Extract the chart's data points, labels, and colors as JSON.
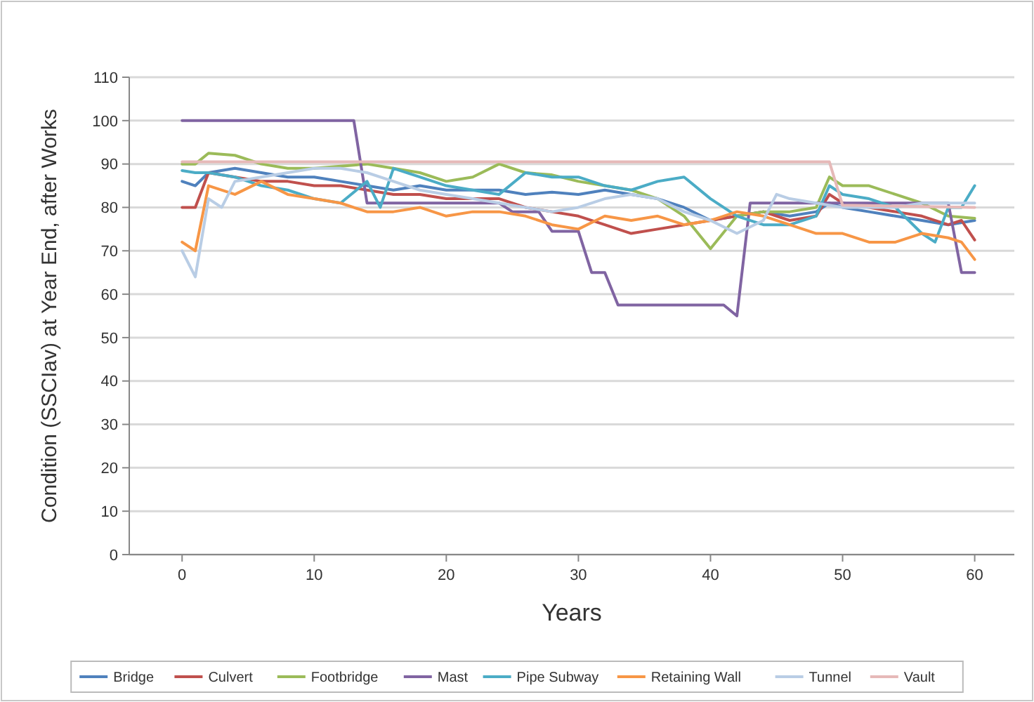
{
  "chart_data": {
    "type": "line",
    "xlabel": "Years",
    "ylabel": "Condition (SSCIav) at Year End, after Works",
    "xlim": [
      -4,
      63
    ],
    "xticks": [
      0,
      10,
      20,
      30,
      40,
      50,
      60
    ],
    "ylim": [
      0,
      110
    ],
    "yticks": [
      0,
      10,
      20,
      30,
      40,
      50,
      60,
      70,
      80,
      90,
      100,
      110
    ],
    "grid": "y",
    "legend": "bottom",
    "marker": "none",
    "line_style": "solid",
    "series": [
      {
        "name": "Bridge",
        "color": "#4f81bd",
        "x": [
          0,
          1,
          2,
          4,
          6,
          8,
          10,
          12,
          14,
          16,
          18,
          20,
          22,
          24,
          26,
          28,
          30,
          32,
          34,
          36,
          38,
          40,
          42,
          44,
          46,
          48,
          49,
          50,
          52,
          54,
          56,
          58,
          60
        ],
        "values": [
          86,
          85,
          88,
          89,
          88,
          87,
          87,
          86,
          85,
          84,
          85,
          84,
          84,
          84,
          83,
          83.5,
          83,
          84,
          83,
          82,
          80,
          77,
          78,
          79,
          78,
          79,
          81,
          80,
          79,
          78,
          77,
          76,
          77
        ]
      },
      {
        "name": "Culvert",
        "color": "#c0504d",
        "x": [
          0,
          1,
          2,
          4,
          6,
          8,
          10,
          12,
          14,
          16,
          18,
          20,
          22,
          24,
          26,
          28,
          30,
          32,
          34,
          36,
          38,
          40,
          42,
          44,
          46,
          48,
          49,
          50,
          52,
          54,
          56,
          58,
          59,
          60
        ],
        "values": [
          80,
          80,
          88,
          87,
          86,
          86,
          85,
          85,
          84,
          83,
          83,
          82,
          82,
          82,
          80,
          79,
          78,
          76,
          74,
          75,
          76,
          77,
          78,
          79,
          77,
          78,
          83,
          81,
          80,
          79,
          78,
          76,
          77,
          72.5
        ]
      },
      {
        "name": "Footbridge",
        "color": "#9bbb59",
        "x": [
          0,
          1,
          2,
          4,
          6,
          8,
          10,
          12,
          14,
          16,
          18,
          20,
          22,
          24,
          26,
          28,
          30,
          32,
          34,
          36,
          38,
          40,
          42,
          44,
          46,
          48,
          49,
          50,
          52,
          54,
          56,
          58,
          60
        ],
        "values": [
          90,
          90,
          92.5,
          92,
          90,
          89,
          89,
          89.5,
          90,
          89,
          88,
          86,
          87,
          90,
          88,
          87.5,
          86,
          85,
          84,
          82,
          78,
          70.5,
          78,
          79,
          79,
          80,
          87,
          85,
          85,
          83,
          81,
          78,
          77.5
        ]
      },
      {
        "name": "Mast",
        "color": "#8064a2",
        "x": [
          0,
          13,
          14,
          24,
          25,
          27,
          28,
          30,
          31,
          32,
          33,
          41,
          42,
          43,
          58,
          59,
          60
        ],
        "values": [
          100,
          100,
          81,
          81,
          79,
          79,
          74.5,
          74.5,
          65,
          65,
          57.5,
          57.5,
          55,
          81,
          81,
          65,
          65
        ]
      },
      {
        "name": "Pipe Subway",
        "color": "#4bacc6",
        "x": [
          0,
          1,
          2,
          4,
          6,
          8,
          10,
          12,
          14,
          15,
          16,
          18,
          20,
          22,
          24,
          26,
          28,
          30,
          32,
          34,
          36,
          38,
          40,
          42,
          44,
          46,
          48,
          49,
          50,
          52,
          54,
          56,
          57,
          58,
          59,
          60
        ],
        "values": [
          88.5,
          88,
          88,
          87,
          85,
          84,
          82,
          81,
          86,
          80,
          89,
          87,
          85,
          84,
          83,
          88,
          87,
          87,
          85,
          84,
          86,
          87,
          82,
          78,
          76,
          76,
          78,
          85,
          83,
          82,
          80,
          74,
          72,
          80,
          80,
          85
        ]
      },
      {
        "name": "Retaining Wall",
        "color": "#f79646",
        "x": [
          0,
          1,
          2,
          4,
          6,
          8,
          10,
          12,
          14,
          16,
          18,
          20,
          22,
          24,
          26,
          28,
          30,
          32,
          34,
          36,
          38,
          40,
          42,
          44,
          46,
          48,
          50,
          52,
          54,
          56,
          58,
          59,
          60
        ],
        "values": [
          72,
          70,
          85,
          83,
          86,
          83,
          82,
          81,
          79,
          79,
          80,
          78,
          79,
          79,
          78,
          76,
          75,
          78,
          77,
          78,
          76,
          77,
          79,
          78,
          76,
          74,
          74,
          72,
          72,
          74,
          73,
          72,
          68
        ]
      },
      {
        "name": "Tunnel",
        "color": "#b9cde5",
        "x": [
          0,
          1,
          2,
          3,
          4,
          6,
          8,
          10,
          12,
          14,
          16,
          18,
          20,
          22,
          24,
          26,
          28,
          30,
          32,
          34,
          36,
          38,
          40,
          42,
          44,
          45,
          46,
          48,
          50,
          52,
          54,
          56,
          58,
          60
        ],
        "values": [
          70,
          64,
          82,
          80,
          86,
          87,
          88,
          89,
          89,
          88,
          86,
          84,
          83,
          82,
          81,
          80,
          79,
          80,
          82,
          83,
          82,
          79,
          77,
          74,
          77,
          83,
          82,
          81,
          80,
          80,
          80,
          81,
          81,
          81
        ]
      },
      {
        "name": "Vault",
        "color": "#e6b9b8",
        "x": [
          0,
          49,
          50,
          60
        ],
        "values": [
          90.5,
          90.5,
          80.5,
          80
        ]
      }
    ]
  }
}
